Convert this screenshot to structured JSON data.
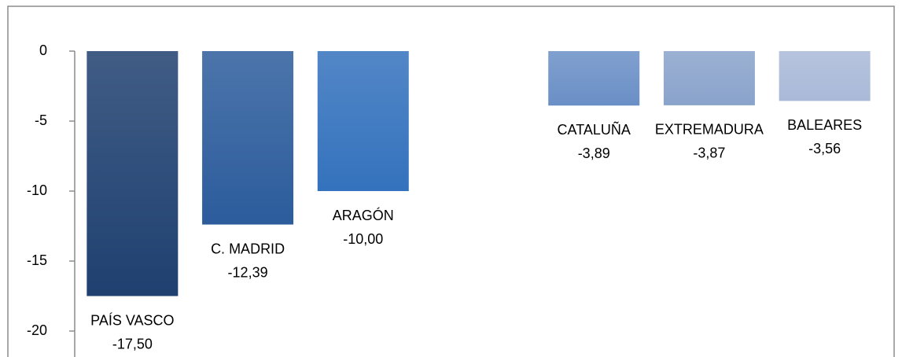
{
  "chart_data": {
    "type": "bar",
    "categories": [
      "PAÍS VASCO",
      "C. MADRID",
      "ARAGÓN",
      null,
      "CATALUÑA",
      "EXTREMADURA",
      "BALEARES"
    ],
    "values": [
      -17.5,
      -12.39,
      -10,
      null,
      -3.89,
      -3.87,
      -3.56
    ],
    "value_labels": [
      "-17,50",
      "-12,39",
      "-10,00",
      null,
      "-3,89",
      "-3,87",
      "-3,56"
    ],
    "colors": [
      "#1f4070",
      "#2c5c9c",
      "#3472bd",
      null,
      "#6a8fc6",
      "#8aa3cb",
      "#a9b9d8"
    ],
    "ylim": [
      -20,
      0
    ],
    "yticks": [
      0,
      -5,
      -10,
      -15,
      -20
    ]
  }
}
